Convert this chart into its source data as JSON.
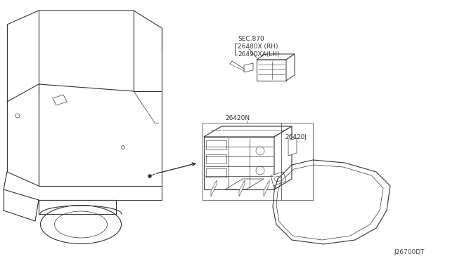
{
  "background_color": "#ffffff",
  "fig_width": 6.4,
  "fig_height": 3.72,
  "dpi": 100,
  "diagram_code": "J26700DT",
  "labels": {
    "sec_label": "SEC.870",
    "part1_rh": "26480X (RH)",
    "part1_lh": "26490XA(LH)",
    "part2_n": "26420N",
    "part2_j": "26420J"
  },
  "line_color": "#333333",
  "text_color": "#333333"
}
